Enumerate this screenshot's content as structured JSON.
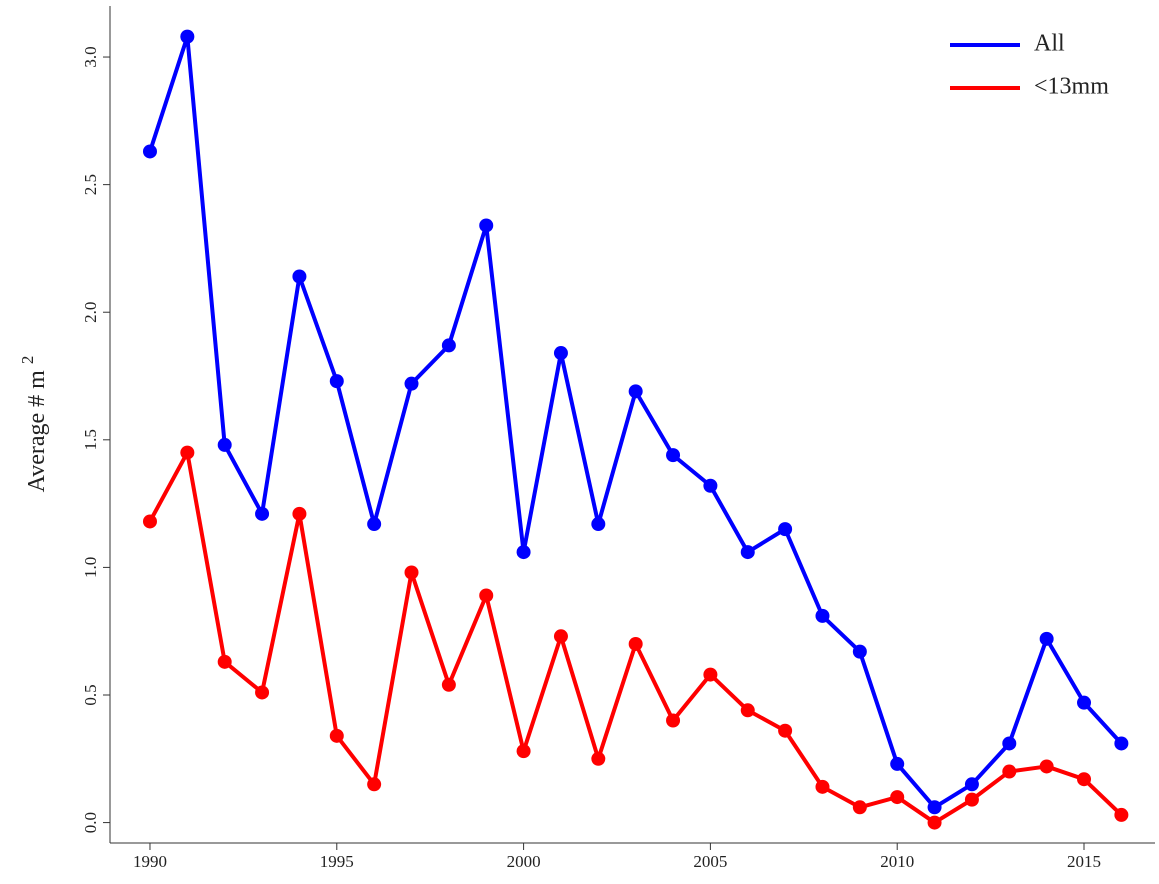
{
  "chart_data": {
    "type": "line",
    "ylabel": "Average # m",
    "ylabel_superscript": "2",
    "x": [
      1990,
      1991,
      1992,
      1993,
      1994,
      1995,
      1996,
      1997,
      1998,
      1999,
      2000,
      2001,
      2002,
      2003,
      2004,
      2005,
      2006,
      2007,
      2008,
      2009,
      2010,
      2011,
      2012,
      2013,
      2014,
      2015,
      2016
    ],
    "series": [
      {
        "name": "All",
        "color": "#0000ff",
        "values": [
          2.63,
          3.08,
          1.48,
          1.21,
          2.14,
          1.73,
          1.17,
          1.72,
          1.87,
          2.34,
          1.06,
          1.84,
          1.17,
          1.69,
          1.44,
          1.32,
          1.06,
          1.15,
          0.81,
          0.67,
          0.23,
          0.06,
          0.15,
          0.31,
          0.72,
          0.47,
          0.31
        ]
      },
      {
        "name": "<13mm",
        "color": "#ff0000",
        "values": [
          1.18,
          1.45,
          0.63,
          0.51,
          1.21,
          0.34,
          0.15,
          0.98,
          0.54,
          0.89,
          0.28,
          0.73,
          0.25,
          0.7,
          0.4,
          0.58,
          0.44,
          0.36,
          0.14,
          0.06,
          0.1,
          0.0,
          0.09,
          0.2,
          0.22,
          0.17,
          0.03
        ]
      }
    ],
    "xlim": [
      1988.93,
      2016.9
    ],
    "xticks": [
      1990,
      1995,
      2000,
      2005,
      2010,
      2015
    ],
    "ylim": [
      -0.08,
      3.2
    ],
    "yticks": [
      {
        "value": 0,
        "label": "0.0"
      },
      {
        "value": 0.5,
        "label": "0.5"
      },
      {
        "value": 1,
        "label": "1.0"
      },
      {
        "value": 1.5,
        "label": "1.5"
      },
      {
        "value": 2,
        "label": "2.0"
      },
      {
        "value": 2.5,
        "label": "2.5"
      },
      {
        "value": 3,
        "label": "3.0"
      }
    ],
    "legend": "top-right"
  }
}
